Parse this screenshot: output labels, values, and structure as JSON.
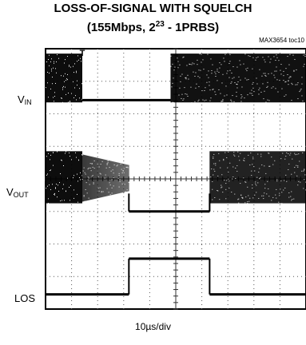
{
  "title_line1": "LOSS-OF-SIGNAL WITH SQUELCH",
  "title_line2": "(155Mbps, 2^23 - 1PRBS)",
  "figure_tag": "MAX3654 toc10",
  "chart_data": {
    "type": "line",
    "title": "LOSS-OF-SIGNAL WITH SQUELCH (155Mbps, 2^23 - 1PRBS)",
    "xlabel": "10µs/div",
    "x_divisions": 10,
    "y_divisions": 8,
    "grid": true,
    "trigger_marker": "T",
    "series": [
      {
        "name": "V_IN",
        "label_main": "V",
        "label_sub": "IN",
        "segments": [
          {
            "from": 0.0,
            "to": 1.4,
            "state": "signal"
          },
          {
            "from": 1.4,
            "to": 4.8,
            "state": "idle"
          },
          {
            "from": 4.8,
            "to": 10.0,
            "state": "signal"
          }
        ]
      },
      {
        "name": "V_OUT",
        "label_main": "V",
        "label_sub": "OUT",
        "segments": [
          {
            "from": 0.0,
            "to": 1.4,
            "state": "signal"
          },
          {
            "from": 1.4,
            "to": 3.2,
            "state": "decaying"
          },
          {
            "from": 3.2,
            "to": 6.3,
            "state": "squelched"
          },
          {
            "from": 6.3,
            "to": 10.0,
            "state": "signal"
          }
        ]
      },
      {
        "name": "LOS",
        "label_main": "LOS",
        "label_sub": "",
        "segments": [
          {
            "from": 0.0,
            "to": 3.2,
            "state": "low"
          },
          {
            "from": 3.2,
            "to": 6.3,
            "state": "high"
          },
          {
            "from": 6.3,
            "to": 10.0,
            "state": "low"
          }
        ]
      }
    ]
  },
  "colors": {
    "trace": "#000000",
    "grid": "#555555",
    "background": "#ffffff"
  }
}
